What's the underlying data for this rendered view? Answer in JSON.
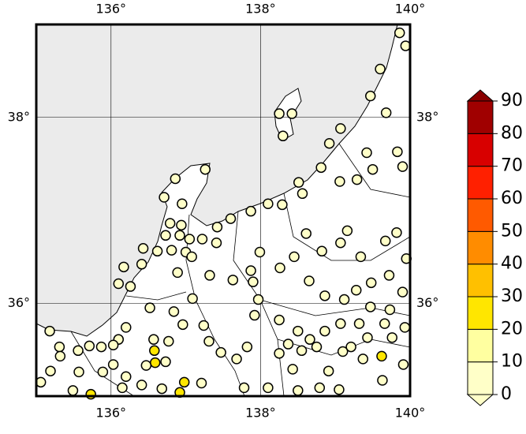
{
  "chart_data": {
    "type": "scatter",
    "xlim": [
      135,
      140
    ],
    "ylim": [
      35,
      39
    ],
    "xticks": [
      {
        "value": 136,
        "label": "136°"
      },
      {
        "value": 138,
        "label": "138°"
      },
      {
        "value": 140,
        "label": "140°"
      }
    ],
    "yticks": [
      {
        "value": 36,
        "label": "36°"
      },
      {
        "value": 38,
        "label": "38°"
      }
    ],
    "grid": true,
    "x": [
      139.86,
      139.94,
      139.6,
      139.47,
      139.68,
      138.25,
      138.42,
      138.3,
      139.07,
      138.92,
      139.42,
      139.83,
      139.9,
      139.5,
      138.81,
      139.06,
      139.29,
      137.26,
      136.86,
      136.71,
      136.95,
      138.51,
      138.56,
      138.29,
      138.1,
      137.87,
      137.6,
      137.42,
      137.22,
      136.94,
      136.79,
      136.73,
      137.05,
      137.0,
      136.81,
      136.92,
      137.41,
      136.62,
      136.43,
      136.41,
      136.17,
      136.1,
      136.26,
      136.89,
      137.08,
      137.32,
      136.52,
      136.84,
      137.09,
      137.63,
      137.87,
      137.99,
      138.26,
      138.45,
      138.61,
      138.82,
      139.07,
      139.16,
      139.34,
      139.67,
      139.82,
      139.95,
      139.72,
      139.48,
      139.28,
      139.12,
      138.86,
      138.65,
      137.97,
      137.9,
      139.47,
      139.73,
      139.9,
      139.66,
      139.93,
      139.32,
      139.07,
      138.86,
      138.5,
      138.25,
      137.92,
      137.82,
      137.68,
      137.47,
      137.31,
      137.24,
      136.96,
      136.77,
      136.57,
      136.58,
      136.59,
      136.73,
      136.47,
      136.2,
      136.1,
      136.03,
      135.87,
      135.71,
      135.56,
      135.31,
      135.18,
      135.32,
      135.19,
      135.06,
      135.57,
      135.89,
      136.2,
      136.03,
      136.98,
      136.92,
      136.68,
      136.41,
      136.15,
      135.73,
      135.49,
      137.21,
      137.78,
      138.1,
      138.43,
      138.5,
      138.79,
      139.05,
      138.91,
      139.1,
      139.37,
      139.62,
      139.63,
      139.91,
      139.76,
      139.43,
      138.75,
      138.55,
      138.25,
      138.37,
      138.66,
      139.21
    ],
    "y": [
      38.91,
      38.77,
      38.52,
      38.23,
      38.05,
      38.04,
      38.04,
      37.8,
      37.88,
      37.72,
      37.62,
      37.63,
      37.47,
      37.44,
      37.46,
      37.31,
      37.33,
      37.44,
      37.34,
      37.14,
      37.07,
      37.3,
      37.18,
      37.06,
      37.07,
      36.99,
      36.91,
      36.82,
      36.69,
      36.84,
      36.86,
      36.73,
      36.69,
      36.55,
      36.57,
      36.73,
      36.65,
      36.56,
      36.59,
      36.42,
      36.39,
      36.21,
      36.18,
      36.33,
      36.5,
      36.3,
      35.95,
      35.91,
      36.05,
      36.25,
      36.35,
      36.55,
      36.38,
      36.5,
      36.75,
      36.56,
      36.65,
      36.78,
      36.5,
      36.67,
      36.76,
      36.48,
      36.3,
      36.22,
      36.14,
      36.04,
      36.08,
      36.24,
      36.04,
      36.23,
      35.96,
      35.93,
      36.12,
      35.78,
      35.74,
      35.78,
      35.78,
      35.7,
      35.7,
      35.82,
      35.87,
      35.53,
      35.4,
      35.47,
      35.59,
      35.76,
      35.77,
      35.59,
      35.61,
      35.49,
      35.36,
      35.37,
      35.33,
      35.74,
      35.61,
      35.55,
      35.53,
      35.54,
      35.49,
      35.53,
      35.7,
      35.43,
      35.27,
      35.15,
      35.26,
      35.26,
      35.21,
      35.34,
      35.15,
      35.04,
      35.08,
      35.12,
      35.09,
      35.02,
      35.06,
      35.14,
      35.09,
      35.09,
      35.29,
      35.06,
      35.09,
      35.07,
      35.27,
      35.48,
      35.4,
      35.43,
      35.17,
      35.34,
      35.63,
      35.63,
      35.53,
      35.49,
      35.46,
      35.56,
      35.61,
      35.53
    ],
    "values": [
      5,
      5,
      5,
      5,
      5,
      5,
      5,
      5,
      5,
      5,
      5,
      5,
      5,
      5,
      5,
      5,
      5,
      5,
      5,
      5,
      5,
      5,
      5,
      5,
      5,
      5,
      5,
      5,
      5,
      5,
      5,
      5,
      5,
      5,
      5,
      5,
      5,
      5,
      5,
      5,
      5,
      5,
      5,
      5,
      5,
      5,
      5,
      5,
      5,
      5,
      5,
      5,
      5,
      5,
      5,
      5,
      5,
      5,
      5,
      5,
      5,
      5,
      5,
      5,
      5,
      5,
      5,
      5,
      5,
      5,
      5,
      5,
      5,
      5,
      5,
      5,
      5,
      5,
      5,
      5,
      5,
      5,
      5,
      5,
      5,
      5,
      5,
      5,
      5,
      25,
      25,
      5,
      5,
      5,
      5,
      5,
      5,
      5,
      5,
      5,
      5,
      5,
      5,
      5,
      5,
      5,
      5,
      5,
      25,
      25,
      5,
      5,
      5,
      22,
      5,
      5,
      5,
      5,
      5,
      5,
      5,
      5,
      5,
      5,
      5,
      25,
      5,
      5,
      5,
      5,
      5,
      5,
      5,
      5,
      5,
      5
    ],
    "colorbar": {
      "ticks": [
        0,
        10,
        20,
        30,
        40,
        50,
        60,
        70,
        80,
        90
      ],
      "colors": [
        "#ffffc8",
        "#ffffa0",
        "#ffe600",
        "#ffc000",
        "#ff8c00",
        "#ff5a00",
        "#ff2000",
        "#d80000",
        "#a00000"
      ],
      "over_color": "#8a0000",
      "under_color": "#ffffc8"
    }
  }
}
